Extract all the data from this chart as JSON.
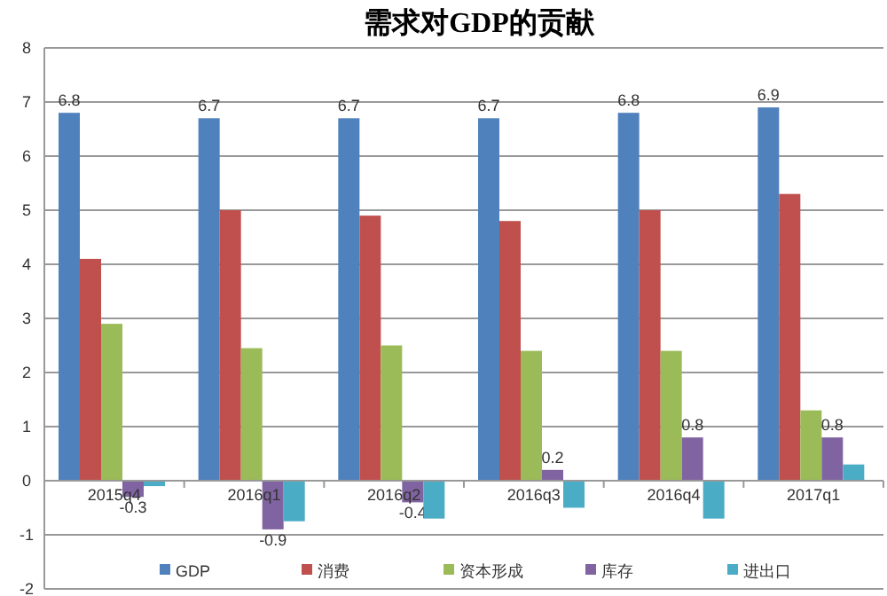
{
  "chart_data": {
    "type": "bar",
    "title": "需求对GDP的贡献",
    "categories": [
      "2015q4",
      "2016q1",
      "2016q2",
      "2016q3",
      "2016q4",
      "2017q1"
    ],
    "series": [
      {
        "name": "GDP",
        "color": "#4f81bd",
        "values": [
          6.8,
          6.7,
          6.7,
          6.7,
          6.8,
          6.9
        ],
        "value_labels": [
          "6.8",
          "6.7",
          "6.7",
          "6.7",
          "6.8",
          "6.9"
        ]
      },
      {
        "name": "消费",
        "color": "#c0504d",
        "values": [
          4.1,
          5.0,
          4.9,
          4.8,
          5.0,
          5.3
        ]
      },
      {
        "name": "资本形成",
        "color": "#9bbb59",
        "values": [
          2.9,
          2.45,
          2.5,
          2.4,
          2.4,
          1.3
        ]
      },
      {
        "name": "库存",
        "color": "#8064a2",
        "values": [
          -0.3,
          -0.9,
          -0.4,
          0.2,
          0.8,
          0.8
        ],
        "value_labels": [
          "-0.3",
          "-0.9",
          "-0.4",
          "0.2",
          "0.8",
          "0.8"
        ]
      },
      {
        "name": "进出口",
        "color": "#4bacc6",
        "values": [
          -0.1,
          -0.75,
          -0.7,
          -0.5,
          -0.7,
          0.3
        ]
      }
    ],
    "ylim": [
      -2,
      8
    ],
    "yticks": [
      -2,
      -1,
      0,
      1,
      2,
      3,
      4,
      5,
      6,
      7,
      8
    ],
    "grid": "y",
    "legend": "bottom"
  }
}
